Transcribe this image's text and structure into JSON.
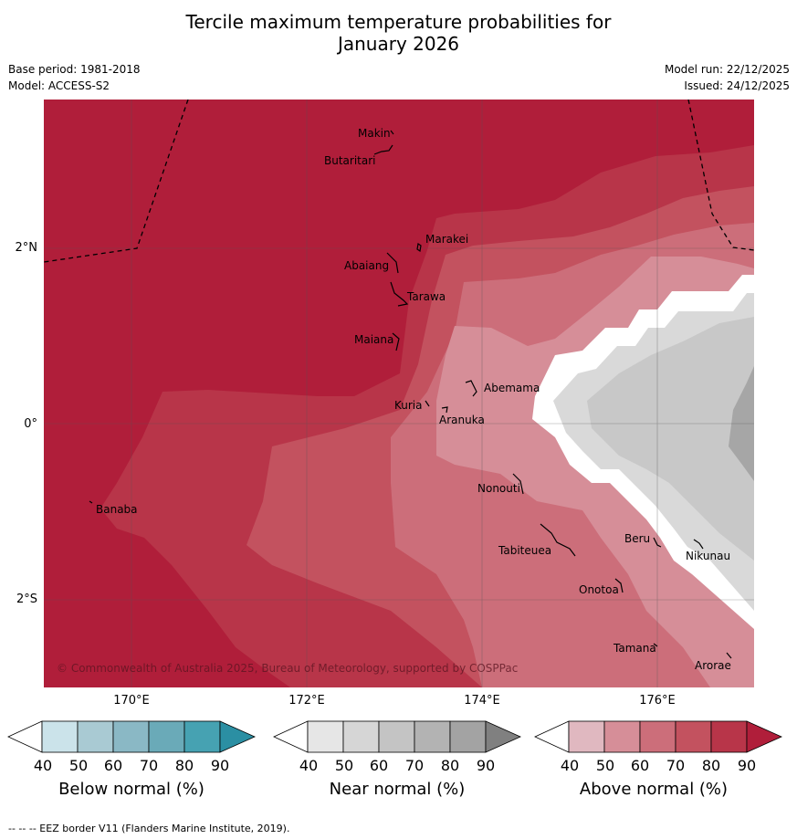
{
  "title_line1": "Tercile maximum temperature probabilities for",
  "title_line2": "January 2026",
  "base_period": "Base period: 1981-2018",
  "model": "Model: ACCESS-S2",
  "model_run": "Model run: 22/12/2025",
  "issued": "Issued: 24/12/2025",
  "latitude_labels": [
    "2°N",
    "0°",
    "2°S"
  ],
  "longitude_labels": [
    "170°E",
    "172°E",
    "174°E",
    "176°E"
  ],
  "places": [
    "Makin",
    "Butaritari",
    "Marakei",
    "Abaiang",
    "Tarawa",
    "Maiana",
    "Abemama",
    "Kuria",
    "Aranuka",
    "Nonouti",
    "Banaba",
    "Tabiteuea",
    "Beru",
    "Nikunau",
    "Onotoa",
    "Tamana",
    "Arorae"
  ],
  "copyright": "© Commonwealth of Australia 2025, Bureau of Meteorology, supported by COSPPac",
  "colorbars": [
    {
      "title": "Below normal (%)",
      "ticks": [
        "40",
        "50",
        "60",
        "70",
        "80",
        "90"
      ],
      "colors": [
        "#ffffff",
        "#cbe3ea",
        "#a9cad3",
        "#8ab8c5",
        "#6aaab8",
        "#46a2b2",
        "#2b8fa3"
      ]
    },
    {
      "title": "Near normal (%)",
      "ticks": [
        "40",
        "50",
        "60",
        "70",
        "80",
        "90"
      ],
      "colors": [
        "#ffffff",
        "#e6e6e6",
        "#d6d6d6",
        "#c4c4c4",
        "#b3b3b3",
        "#a3a3a3",
        "#808080"
      ]
    },
    {
      "title": "Above normal (%)",
      "ticks": [
        "40",
        "50",
        "60",
        "70",
        "80",
        "90"
      ],
      "colors": [
        "#ffffff",
        "#e0b8c0",
        "#d68e98",
        "#cc6e7a",
        "#c3525f",
        "#b83549",
        "#b01e3a"
      ]
    }
  ],
  "footnote": "--  --  -- EEZ border V11 (Flanders Marine Institute, 2019).",
  "map_colors": {
    "above_90": "#b01e3a",
    "above_80": "#b83549",
    "above_70": "#c3525f",
    "above_60": "#cc6e7a",
    "above_50": "#d68e98",
    "near_50": "#d9d9d9",
    "near_60": "#c8c8c8",
    "near_70": "#a6a6a6"
  }
}
